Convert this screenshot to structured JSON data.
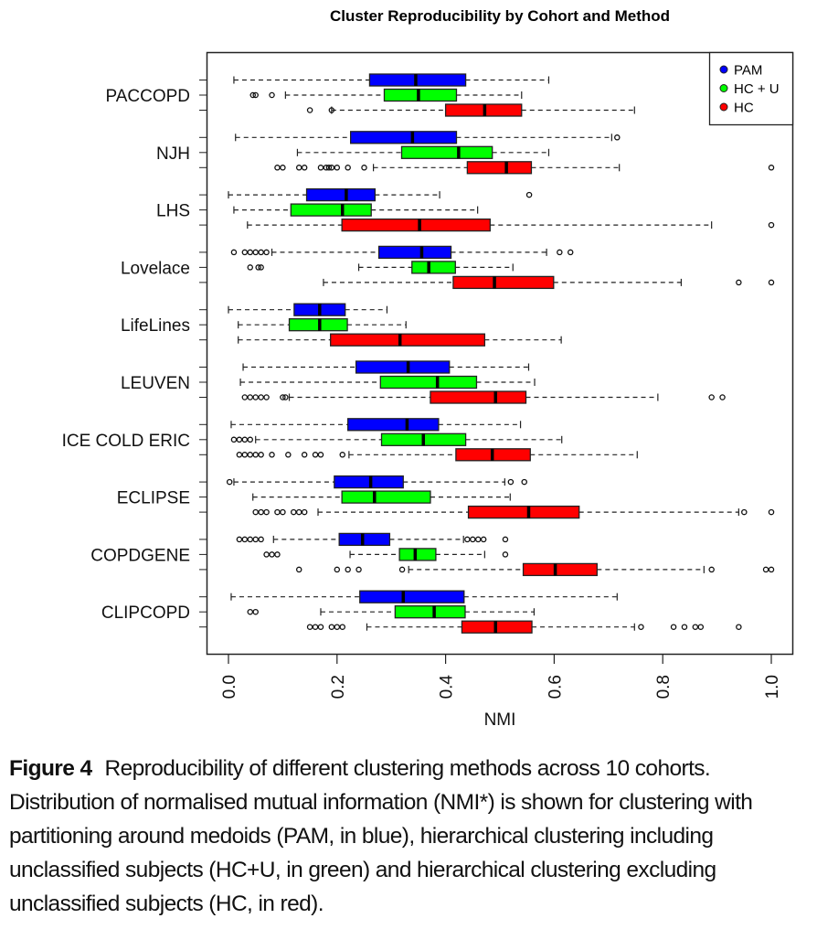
{
  "figure": {
    "caption_label": "Figure 4",
    "caption_text": "Reproducibility of different clustering methods across 10 cohorts. Distribution of normalised mutual information (NMI*) is shown for clustering with partitioning around medoids (PAM, in blue), hierarchical clustering including unclassified subjects (HC+U, in green) and hierarchical clustering excluding unclassified subjects (HC, in red)."
  },
  "chart_data": {
    "type": "boxplot",
    "orientation": "horizontal",
    "title": "Cluster Reproducibility by Cohort and Method",
    "xlabel": "NMI",
    "ylabel": "",
    "xlim": [
      0.0,
      1.0
    ],
    "x_ticks": [
      "0.0",
      "0.2",
      "0.4",
      "0.6",
      "0.8",
      "1.0"
    ],
    "x_tick_values": [
      0.0,
      0.2,
      0.4,
      0.6,
      0.8,
      1.0
    ],
    "grid": false,
    "legend": {
      "position": "top-right",
      "entries": [
        {
          "name": "PAM",
          "color": "#0000ff"
        },
        {
          "name": "HC + U",
          "color": "#00ff00"
        },
        {
          "name": "HC",
          "color": "#ff0000"
        }
      ]
    },
    "methods": [
      "PAM",
      "HC + U",
      "HC"
    ],
    "colors": {
      "PAM": "#0000ff",
      "HC + U": "#00ff00",
      "HC": "#ff0000"
    },
    "categories": [
      "PACCOPD",
      "NJH",
      "LHS",
      "Lovelace",
      "LifeLines",
      "LEUVEN",
      "ICE COLD ERIC",
      "ECLIPSE",
      "COPDGENE",
      "CLIPCOPD"
    ],
    "series": [
      {
        "cohort": "PACCOPD",
        "boxes": [
          {
            "method": "PAM",
            "whisker_low": 0.01,
            "q1": 0.26,
            "median": 0.345,
            "q3": 0.437,
            "whisker_high": 0.59,
            "outliers": []
          },
          {
            "method": "HC + U",
            "whisker_low": 0.105,
            "q1": 0.287,
            "median": 0.35,
            "q3": 0.42,
            "whisker_high": 0.54,
            "outliers": [
              0.045,
              0.05,
              0.08
            ]
          },
          {
            "method": "HC",
            "whisker_low": 0.19,
            "q1": 0.4,
            "median": 0.472,
            "q3": 0.54,
            "whisker_high": 0.748,
            "outliers": [
              0.15,
              0.19
            ]
          }
        ]
      },
      {
        "cohort": "NJH",
        "boxes": [
          {
            "method": "PAM",
            "whisker_low": 0.013,
            "q1": 0.225,
            "median": 0.339,
            "q3": 0.42,
            "whisker_high": 0.706,
            "outliers": [
              0.716
            ]
          },
          {
            "method": "HC + U",
            "whisker_low": 0.127,
            "q1": 0.319,
            "median": 0.424,
            "q3": 0.486,
            "whisker_high": 0.59,
            "outliers": []
          },
          {
            "method": "HC",
            "whisker_low": 0.267,
            "q1": 0.44,
            "median": 0.512,
            "q3": 0.558,
            "whisker_high": 0.72,
            "outliers": [
              0.09,
              0.1,
              0.13,
              0.14,
              0.17,
              0.18,
              0.185,
              0.19,
              0.2,
              0.22,
              0.25,
              1.0
            ]
          }
        ]
      },
      {
        "cohort": "LHS",
        "boxes": [
          {
            "method": "PAM",
            "whisker_low": 0.0,
            "q1": 0.144,
            "median": 0.217,
            "q3": 0.27,
            "whisker_high": 0.389,
            "outliers": [
              0.554
            ]
          },
          {
            "method": "HC + U",
            "whisker_low": 0.01,
            "q1": 0.115,
            "median": 0.21,
            "q3": 0.263,
            "whisker_high": 0.459,
            "outliers": []
          },
          {
            "method": "HC",
            "whisker_low": 0.035,
            "q1": 0.209,
            "median": 0.352,
            "q3": 0.482,
            "whisker_high": 0.89,
            "outliers": [
              1.0
            ]
          }
        ]
      },
      {
        "cohort": "Lovelace",
        "boxes": [
          {
            "method": "PAM",
            "whisker_low": 0.08,
            "q1": 0.277,
            "median": 0.356,
            "q3": 0.41,
            "whisker_high": 0.586,
            "outliers": [
              0.01,
              0.03,
              0.04,
              0.05,
              0.06,
              0.07,
              0.61,
              0.63
            ]
          },
          {
            "method": "HC + U",
            "whisker_low": 0.24,
            "q1": 0.338,
            "median": 0.369,
            "q3": 0.418,
            "whisker_high": 0.524,
            "outliers": [
              0.04,
              0.055,
              0.06
            ]
          },
          {
            "method": "HC",
            "whisker_low": 0.175,
            "q1": 0.414,
            "median": 0.49,
            "q3": 0.599,
            "whisker_high": 0.834,
            "outliers": [
              0.94,
              1.0
            ]
          }
        ]
      },
      {
        "cohort": "LifeLines",
        "boxes": [
          {
            "method": "PAM",
            "whisker_low": 0.0,
            "q1": 0.121,
            "median": 0.168,
            "q3": 0.215,
            "whisker_high": 0.292,
            "outliers": []
          },
          {
            "method": "HC + U",
            "whisker_low": 0.018,
            "q1": 0.112,
            "median": 0.168,
            "q3": 0.219,
            "whisker_high": 0.327,
            "outliers": []
          },
          {
            "method": "HC",
            "whisker_low": 0.018,
            "q1": 0.188,
            "median": 0.316,
            "q3": 0.472,
            "whisker_high": 0.613,
            "outliers": []
          }
        ]
      },
      {
        "cohort": "LEUVEN",
        "boxes": [
          {
            "method": "PAM",
            "whisker_low": 0.027,
            "q1": 0.235,
            "median": 0.331,
            "q3": 0.407,
            "whisker_high": 0.553,
            "outliers": []
          },
          {
            "method": "HC + U",
            "whisker_low": 0.022,
            "q1": 0.28,
            "median": 0.385,
            "q3": 0.457,
            "whisker_high": 0.564,
            "outliers": []
          },
          {
            "method": "HC",
            "whisker_low": 0.112,
            "q1": 0.372,
            "median": 0.492,
            "q3": 0.548,
            "whisker_high": 0.791,
            "outliers": [
              0.03,
              0.04,
              0.05,
              0.06,
              0.07,
              0.1,
              0.105,
              0.89,
              0.91
            ]
          }
        ]
      },
      {
        "cohort": "ICE COLD ERIC",
        "boxes": [
          {
            "method": "PAM",
            "whisker_low": 0.005,
            "q1": 0.22,
            "median": 0.329,
            "q3": 0.387,
            "whisker_high": 0.538,
            "outliers": []
          },
          {
            "method": "HC + U",
            "whisker_low": 0.05,
            "q1": 0.282,
            "median": 0.359,
            "q3": 0.437,
            "whisker_high": 0.614,
            "outliers": [
              0.01,
              0.02,
              0.03,
              0.04
            ]
          },
          {
            "method": "HC",
            "whisker_low": 0.222,
            "q1": 0.419,
            "median": 0.486,
            "q3": 0.556,
            "whisker_high": 0.753,
            "outliers": [
              0.02,
              0.03,
              0.04,
              0.05,
              0.06,
              0.08,
              0.11,
              0.14,
              0.16,
              0.17,
              0.21
            ]
          }
        ]
      },
      {
        "cohort": "ECLIPSE",
        "boxes": [
          {
            "method": "PAM",
            "whisker_low": 0.01,
            "q1": 0.195,
            "median": 0.262,
            "q3": 0.322,
            "whisker_high": 0.509,
            "outliers": [
              0.002,
              0.52,
              0.545
            ]
          },
          {
            "method": "HC + U",
            "whisker_low": 0.045,
            "q1": 0.209,
            "median": 0.269,
            "q3": 0.372,
            "whisker_high": 0.519,
            "outliers": []
          },
          {
            "method": "HC",
            "whisker_low": 0.165,
            "q1": 0.442,
            "median": 0.553,
            "q3": 0.646,
            "whisker_high": 0.94,
            "outliers": [
              0.05,
              0.06,
              0.07,
              0.09,
              0.1,
              0.12,
              0.13,
              0.14,
              0.95,
              1.0
            ]
          }
        ]
      },
      {
        "cohort": "COPDGENE",
        "boxes": [
          {
            "method": "PAM",
            "whisker_low": 0.083,
            "q1": 0.204,
            "median": 0.247,
            "q3": 0.297,
            "whisker_high": 0.433,
            "outliers": [
              0.02,
              0.03,
              0.04,
              0.05,
              0.06,
              0.44,
              0.45,
              0.46,
              0.47,
              0.51
            ]
          },
          {
            "method": "HC + U",
            "whisker_low": 0.224,
            "q1": 0.315,
            "median": 0.344,
            "q3": 0.382,
            "whisker_high": 0.472,
            "outliers": [
              0.07,
              0.08,
              0.09,
              0.51
            ]
          },
          {
            "method": "HC",
            "whisker_low": 0.332,
            "q1": 0.543,
            "median": 0.602,
            "q3": 0.679,
            "whisker_high": 0.876,
            "outliers": [
              0.13,
              0.2,
              0.22,
              0.24,
              0.32,
              0.89,
              0.99,
              1.0
            ]
          }
        ]
      },
      {
        "cohort": "CLIPCOPD",
        "boxes": [
          {
            "method": "PAM",
            "whisker_low": 0.005,
            "q1": 0.242,
            "median": 0.322,
            "q3": 0.434,
            "whisker_high": 0.716,
            "outliers": []
          },
          {
            "method": "HC + U",
            "whisker_low": 0.17,
            "q1": 0.307,
            "median": 0.379,
            "q3": 0.436,
            "whisker_high": 0.563,
            "outliers": [
              0.04,
              0.05
            ]
          },
          {
            "method": "HC",
            "whisker_low": 0.255,
            "q1": 0.43,
            "median": 0.492,
            "q3": 0.559,
            "whisker_high": 0.748,
            "outliers": [
              0.15,
              0.16,
              0.17,
              0.19,
              0.2,
              0.21,
              0.76,
              0.82,
              0.84,
              0.86,
              0.87,
              0.94
            ]
          }
        ]
      }
    ]
  }
}
